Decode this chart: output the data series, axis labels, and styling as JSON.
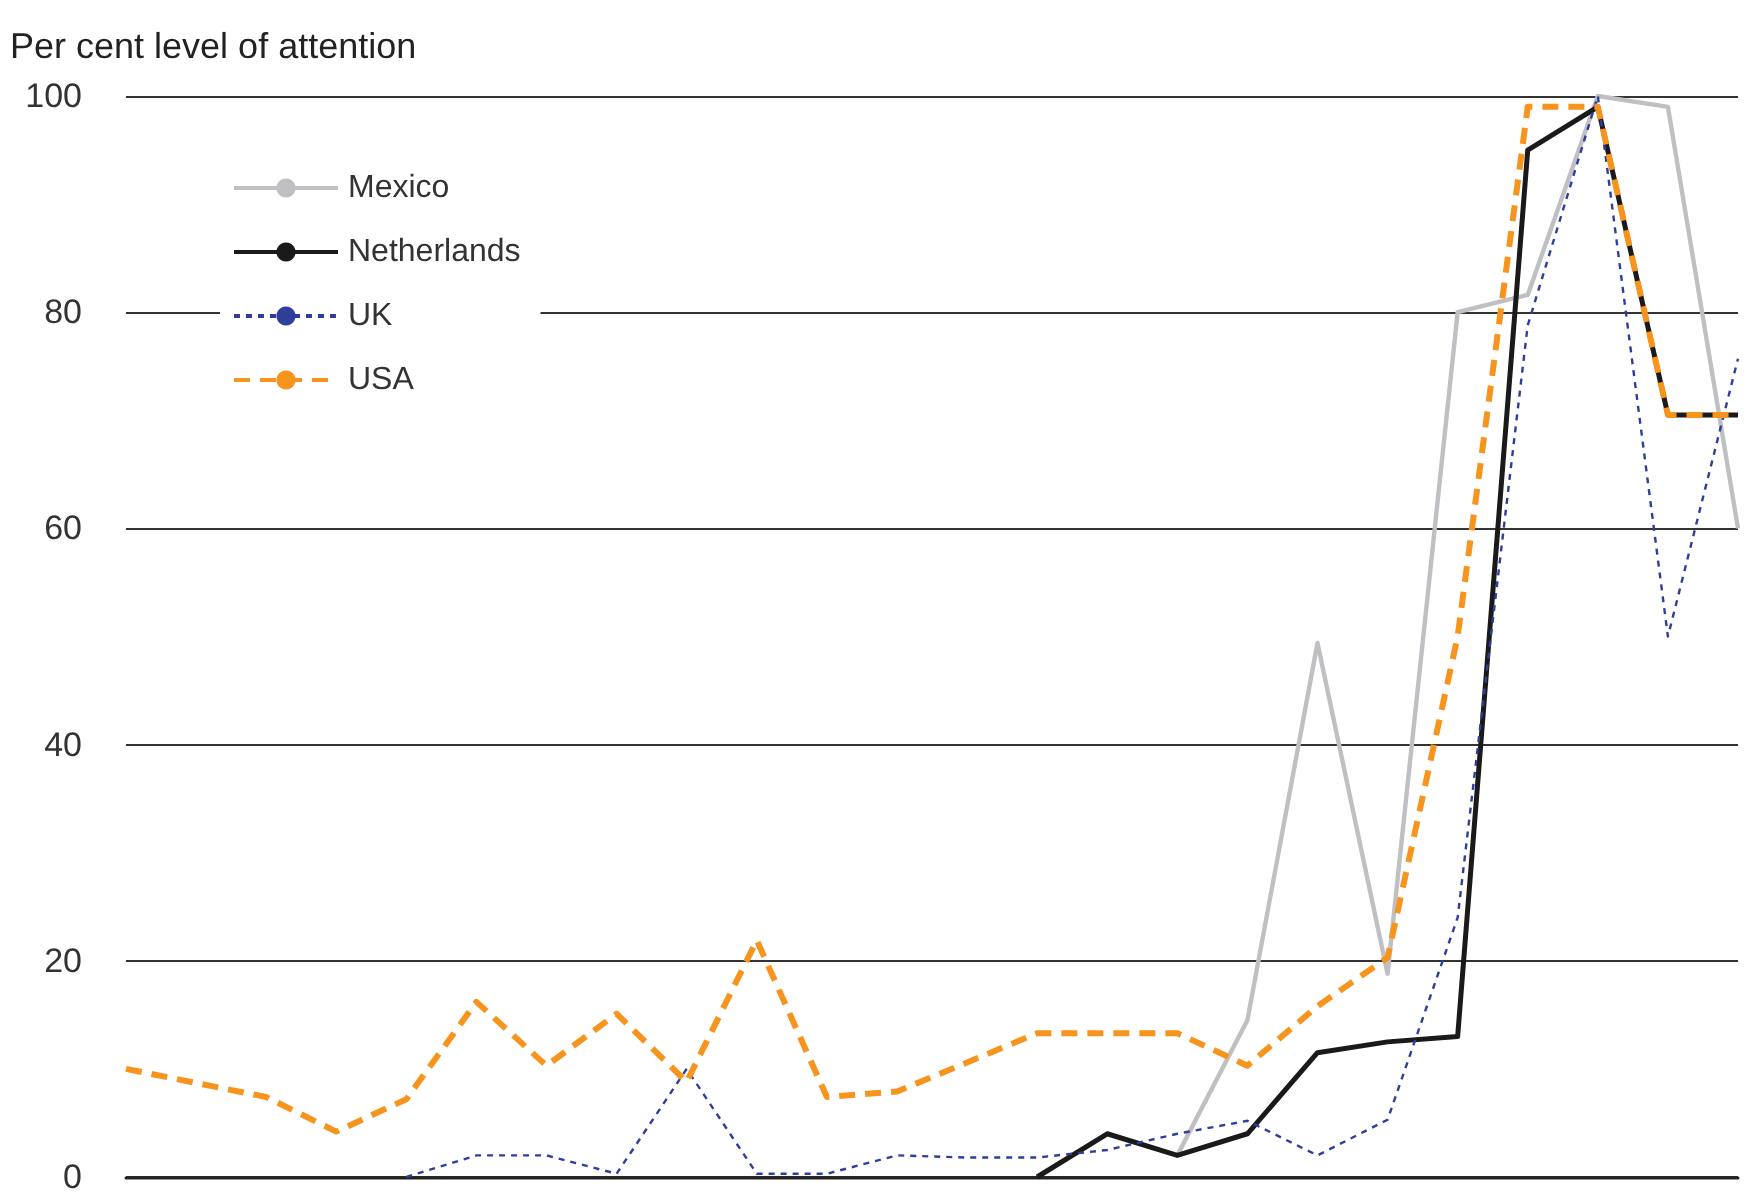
{
  "chart_data": {
    "type": "line",
    "ylabel": "Per cent level of attention",
    "categories": [
      null,
      null,
      null,
      null,
      null,
      null,
      null,
      null,
      null,
      null,
      null,
      null,
      null,
      null,
      null,
      null,
      null,
      null,
      null,
      null,
      null,
      null,
      null,
      null
    ],
    "series": [
      {
        "name": "Mexico",
        "color": "#c0c0c4",
        "line_style": "solid",
        "values": [
          null,
          null,
          null,
          null,
          null,
          null,
          null,
          null,
          null,
          null,
          null,
          null,
          null,
          null,
          null,
          2,
          14.5,
          49.4,
          18.8,
          80,
          81.6,
          100,
          99,
          60
        ]
      },
      {
        "name": "Netherlands",
        "color": "#1a1a1a",
        "line_style": "solid",
        "values": [
          null,
          null,
          null,
          null,
          null,
          null,
          null,
          null,
          null,
          null,
          null,
          null,
          null,
          0,
          4,
          2,
          4,
          11.5,
          12.5,
          13,
          95,
          99,
          70.5,
          70.5
        ]
      },
      {
        "name": "UK",
        "color": "#2e3f9a",
        "line_style": "dotted",
        "values": [
          null,
          null,
          null,
          null,
          0,
          2,
          2,
          0.3,
          10,
          0.3,
          0.3,
          2,
          1.8,
          1.8,
          2.5,
          4,
          5.2,
          2,
          5.3,
          24,
          78.8,
          100,
          50,
          75.7
        ]
      },
      {
        "name": "USA",
        "color": "#f7941d",
        "line_style": "dashed",
        "values": [
          10,
          8.7,
          7.4,
          4.2,
          7.2,
          16.2,
          10.3,
          15.1,
          8.8,
          21.9,
          7.4,
          7.9,
          10.6,
          13.3,
          13.3,
          13.3,
          10.3,
          15.8,
          20.3,
          50,
          99,
          99,
          70.5,
          70.5
        ]
      }
    ],
    "ylim": [
      0,
      100
    ],
    "yticks": [
      0,
      20,
      40,
      60,
      80,
      100
    ],
    "grid": "y",
    "legend": "top left",
    "marker": "none"
  }
}
